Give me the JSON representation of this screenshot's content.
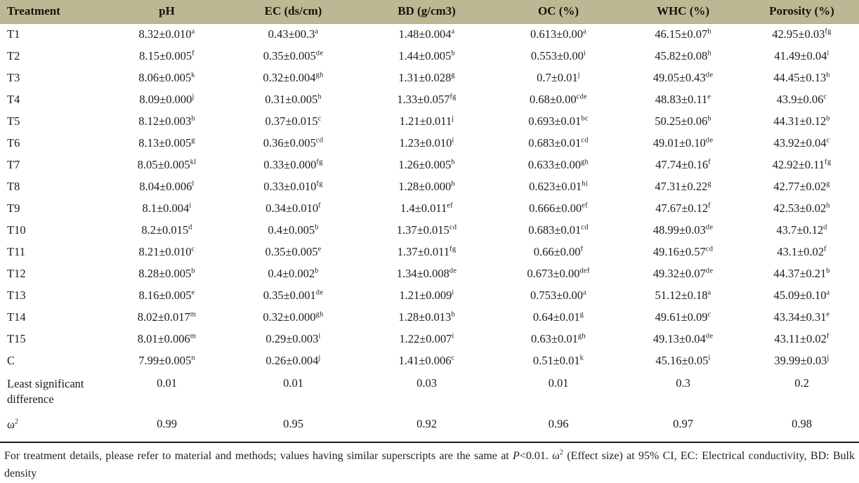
{
  "colors": {
    "header_bg": "#bdb894",
    "header_text": "#15130a",
    "body_text": "#1c1c1c",
    "rule": "#1a1a1a"
  },
  "table": {
    "columns": [
      "Treatment",
      "pH",
      "EC (ds/cm)",
      "BD (g/cm3)",
      "OC (%)",
      "WHC (%)",
      "Porosity (%)"
    ],
    "rows": [
      {
        "label": "T1",
        "values": [
          [
            "8.32±0.010",
            "a"
          ],
          [
            "0.43±00.3",
            "a"
          ],
          [
            "1.48±0.004",
            "a"
          ],
          [
            "0.613±0.00",
            "a"
          ],
          [
            "46.15±0.07",
            "h"
          ],
          [
            "42.95±0.03",
            "fg"
          ]
        ]
      },
      {
        "label": "T2",
        "values": [
          [
            "8.15±0.005",
            "f"
          ],
          [
            "0.35±0.005",
            "de"
          ],
          [
            "1.44±0.005",
            "b"
          ],
          [
            "0.553±0.00",
            "i"
          ],
          [
            "45.82±0.08",
            "h"
          ],
          [
            "41.49±0.04",
            "i"
          ]
        ]
      },
      {
        "label": "T3",
        "values": [
          [
            "8.06±0.005",
            "k"
          ],
          [
            "0.32±0.004",
            "gh"
          ],
          [
            "1.31±0.028",
            "g"
          ],
          [
            "0.7±0.01",
            "j"
          ],
          [
            "49.05±0.43",
            "de"
          ],
          [
            "44.45±0.13",
            "b"
          ]
        ]
      },
      {
        "label": "T4",
        "values": [
          [
            "8.09±0.000",
            "j"
          ],
          [
            "0.31±0.005",
            "h"
          ],
          [
            "1.33±0.057",
            "fg"
          ],
          [
            "0.68±0.00",
            "cde"
          ],
          [
            "48.83±0.11",
            "e"
          ],
          [
            "43.9±0.06",
            "c"
          ]
        ]
      },
      {
        "label": "T5",
        "values": [
          [
            "8.12±0.003",
            "h"
          ],
          [
            "0.37±0.015",
            "c"
          ],
          [
            "1.21±0.011",
            "j"
          ],
          [
            "0.693±0.01",
            "bc"
          ],
          [
            "50.25±0.06",
            "b"
          ],
          [
            "44.31±0.12",
            "b"
          ]
        ]
      },
      {
        "label": "T6",
        "values": [
          [
            "8.13±0.005",
            "g"
          ],
          [
            "0.36±0.005",
            "cd"
          ],
          [
            "1.23±0.010",
            "i"
          ],
          [
            "0.683±0.01",
            "cd"
          ],
          [
            "49.01±0.10",
            "de"
          ],
          [
            "43.92±0.04",
            "c"
          ]
        ]
      },
      {
        "label": "T7",
        "values": [
          [
            "8.05±0.005",
            "kl"
          ],
          [
            "0.33±0.000",
            "fg"
          ],
          [
            "1.26±0.005",
            "h"
          ],
          [
            "0.633±0.00",
            "gh"
          ],
          [
            "47.74±0.16",
            "f"
          ],
          [
            "42.92±0.11",
            "fg"
          ]
        ]
      },
      {
        "label": "T8",
        "values": [
          [
            "8.04±0.006",
            "l"
          ],
          [
            "0.33±0.010",
            "fg"
          ],
          [
            "1.28±0.000",
            "h"
          ],
          [
            "0.623±0.01",
            "hi"
          ],
          [
            "47.31±0.22",
            "g"
          ],
          [
            "42.77±0.02",
            "g"
          ]
        ]
      },
      {
        "label": "T9",
        "values": [
          [
            "8.1±0.004",
            "i"
          ],
          [
            "0.34±0.010",
            "f"
          ],
          [
            "1.4±0.011",
            "ef"
          ],
          [
            "0.666±0.00",
            "ef"
          ],
          [
            "47.67±0.12",
            "f"
          ],
          [
            "42.53±0.02",
            "h"
          ]
        ]
      },
      {
        "label": "T10",
        "values": [
          [
            "8.2±0.015",
            "d"
          ],
          [
            "0.4±0.005",
            "b"
          ],
          [
            "1.37±0.015",
            "cd"
          ],
          [
            "0.683±0.01",
            "cd"
          ],
          [
            "48.99±0.03",
            "de"
          ],
          [
            "43.7±0.12",
            "d"
          ]
        ]
      },
      {
        "label": "T11",
        "values": [
          [
            "8.21±0.010",
            "c"
          ],
          [
            "0.35±0.005",
            "e"
          ],
          [
            "1.37±0.011",
            "fg"
          ],
          [
            "0.66±0.00",
            "f"
          ],
          [
            "49.16±0.57",
            "cd"
          ],
          [
            "43.1±0.02",
            "f"
          ]
        ]
      },
      {
        "label": "T12",
        "values": [
          [
            "8.28±0.005",
            "b"
          ],
          [
            "0.4±0.002",
            "b"
          ],
          [
            "1.34±0.008",
            "de"
          ],
          [
            "0.673±0.00",
            "def"
          ],
          [
            "49.32±0.07",
            "de"
          ],
          [
            "44.37±0.21",
            "b"
          ]
        ]
      },
      {
        "label": "T13",
        "values": [
          [
            "8.16±0.005",
            "e"
          ],
          [
            "0.35±0.001",
            "de"
          ],
          [
            "1.21±0.009",
            "i"
          ],
          [
            "0.753±0.00",
            "a"
          ],
          [
            "51.12±0.18",
            "a"
          ],
          [
            "45.09±0.10",
            "a"
          ]
        ]
      },
      {
        "label": "T14",
        "values": [
          [
            "8.02±0.017",
            "m"
          ],
          [
            "0.32±0.000",
            "gh"
          ],
          [
            "1.28±0.013",
            "h"
          ],
          [
            "0.64±0.01",
            "g"
          ],
          [
            "49.61±0.09",
            "c"
          ],
          [
            "43.34±0.31",
            "e"
          ]
        ]
      },
      {
        "label": "T15",
        "values": [
          [
            "8.01±0.006",
            "m"
          ],
          [
            "0.29±0.003",
            "i"
          ],
          [
            "1.22±0.007",
            "i"
          ],
          [
            "0.63±0.01",
            "gh"
          ],
          [
            "49.13±0.04",
            "de"
          ],
          [
            "43.11±0.02",
            "f"
          ]
        ]
      },
      {
        "label": "C",
        "values": [
          [
            "7.99±0.005",
            "n"
          ],
          [
            "0.26±0.004",
            "j"
          ],
          [
            "1.41±0.006",
            "c"
          ],
          [
            "0.51±0.01",
            "k"
          ],
          [
            "45.16±0.05",
            "i"
          ],
          [
            "39.99±0.03",
            "j"
          ]
        ]
      }
    ],
    "stat_rows": [
      {
        "label": [
          "Least significant difference",
          ""
        ],
        "row_class": "lsd-row",
        "values": [
          [
            "0.01",
            ""
          ],
          [
            "0.01",
            ""
          ],
          [
            "0.03",
            ""
          ],
          [
            "0.01",
            ""
          ],
          [
            "0.3",
            ""
          ],
          [
            "0.2",
            ""
          ]
        ]
      },
      {
        "label": [
          "ω",
          "2"
        ],
        "row_class": "omega-row",
        "values": [
          [
            "0.99",
            ""
          ],
          [
            "0.95",
            ""
          ],
          [
            "0.92",
            ""
          ],
          [
            "0.96",
            ""
          ],
          [
            "0.97",
            ""
          ],
          [
            "0.98",
            ""
          ]
        ]
      }
    ]
  },
  "footnote": {
    "parts": [
      [
        "For treatment details, please refer to material and methods; values having similar superscripts are the same at ",
        ""
      ],
      [
        "P",
        "i"
      ],
      [
        "<0.01. ω",
        ""
      ],
      [
        "2",
        "sup"
      ],
      [
        " (Effect size) at 95% CI, EC: Electrical conductivity, BD: Bulk density",
        ""
      ]
    ]
  }
}
